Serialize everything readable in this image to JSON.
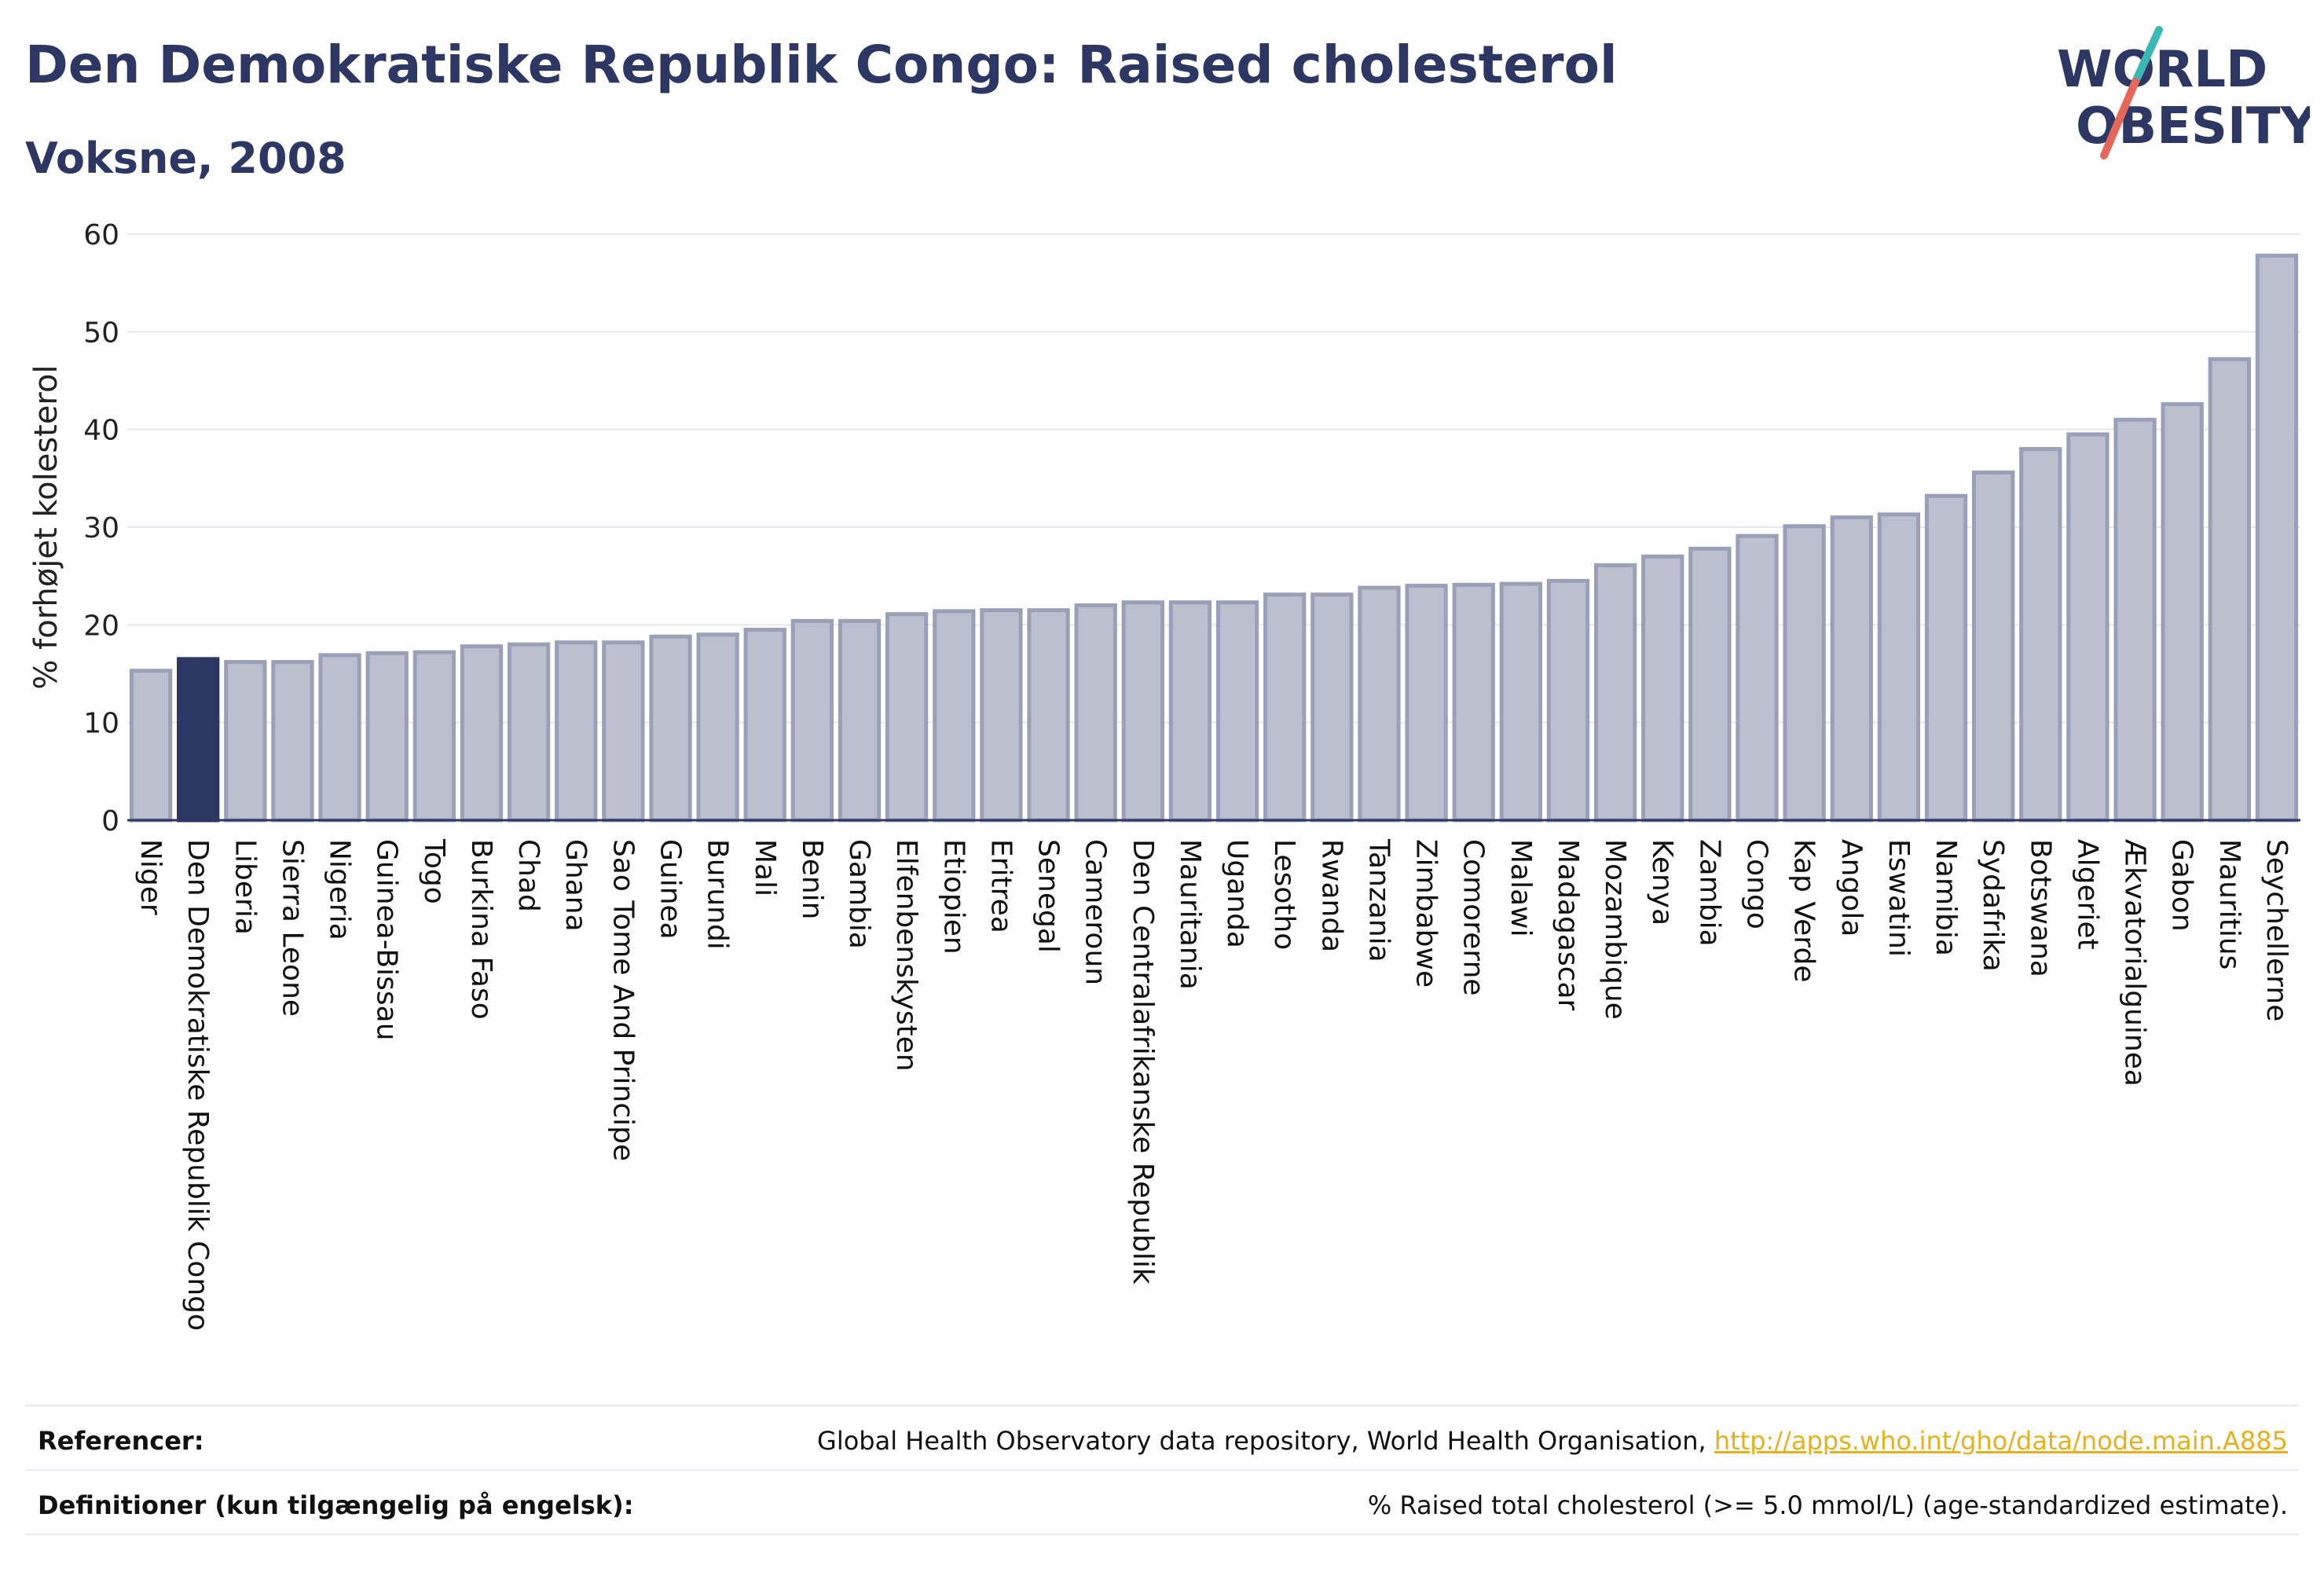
{
  "header": {
    "title": "Den Demokratiske Republik Congo: Raised cholesterol",
    "subtitle": "Voksne, 2008"
  },
  "logo": {
    "line1": "WORLD",
    "line2": "OBESITY",
    "colors": {
      "text": "#2c3763",
      "slash_teal": "#3bb8b4",
      "slash_red": "#e5675a"
    }
  },
  "chart_data": {
    "type": "bar",
    "ylabel": "% forhøjet kolesterol",
    "ylim": [
      0,
      60
    ],
    "yticks": [
      0,
      10,
      20,
      30,
      40,
      50,
      60
    ],
    "grid": true,
    "highlight": "Den Demokratiske Republik Congo",
    "colors": {
      "bar": "#bbbfce",
      "bar_edge": "#9aa0b8",
      "highlight": "#2c3763"
    },
    "categories": [
      "Niger",
      "Den Demokratiske Republik Congo",
      "Liberia",
      "Sierra Leone",
      "Nigeria",
      "Guinea-Bissau",
      "Togo",
      "Burkina Faso",
      "Chad",
      "Ghana",
      "Sao Tome And Principe",
      "Guinea",
      "Burundi",
      "Mali",
      "Benin",
      "Gambia",
      "Elfenbenskysten",
      "Etiopien",
      "Eritrea",
      "Senegal",
      "Cameroun",
      "Den Centralafrikanske Republik",
      "Mauritania",
      "Uganda",
      "Lesotho",
      "Rwanda",
      "Tanzania",
      "Zimbabwe",
      "Comorerne",
      "Malawi",
      "Madagascar",
      "Mozambique",
      "Kenya",
      "Zambia",
      "Congo",
      "Kap Verde",
      "Angola",
      "Eswatini",
      "Namibia",
      "Sydafrika",
      "Botswana",
      "Algeriet",
      "Ækvatorialguinea",
      "Gabon",
      "Mauritius",
      "Seychellerne"
    ],
    "values": [
      15.3,
      16.5,
      16.2,
      16.2,
      16.9,
      17.1,
      17.2,
      17.8,
      18.0,
      18.2,
      18.2,
      18.8,
      19.0,
      19.5,
      20.4,
      20.4,
      21.1,
      21.4,
      21.5,
      21.5,
      22.0,
      22.3,
      22.3,
      22.3,
      23.1,
      23.1,
      23.8,
      24.0,
      24.1,
      24.2,
      24.5,
      26.1,
      27.0,
      27.8,
      29.1,
      30.1,
      31.0,
      31.3,
      33.2,
      35.6,
      38.0,
      39.5,
      41.0,
      42.6,
      47.2,
      57.8
    ]
  },
  "footer": {
    "references_label": "Referencer:",
    "references_text": "Global Health Observatory data repository, World Health Organisation, ",
    "references_link": "http://apps.who.int/gho/data/node.main.A885",
    "definitions_label": "Definitioner (kun tilgængelig på engelsk):",
    "definitions_text": "% Raised total cholesterol (>= 5.0 mmol/L) (age-standardized estimate)."
  }
}
